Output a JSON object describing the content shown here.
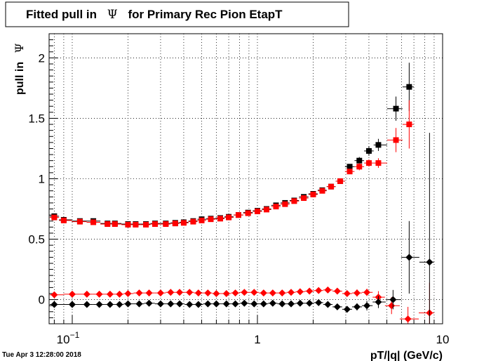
{
  "footer": {
    "timestamp": "Tue Apr  3 12:28:00 2018"
  },
  "chart_data": {
    "type": "scatter",
    "title": "Fitted pull in  Ψ  for Primary Rec Pion EtapT",
    "title_parts": {
      "prefix": "Fitted pull in",
      "symbol": "Ψ",
      "suffix": "for Primary Rec Pion EtapT"
    },
    "xlabel": "pT/|q| (GeV/c)",
    "ylabel": "pull in  Ψ",
    "ylabel_parts": {
      "prefix": "pull in",
      "symbol": "Ψ"
    },
    "x_scale": "log",
    "xlim": [
      0.075,
      10
    ],
    "ylim": [
      -0.2,
      2.2
    ],
    "grid": true,
    "legend": "none",
    "x_ticks": [
      {
        "value": 0.1,
        "label": "10",
        "sup": "−1"
      },
      {
        "value": 1,
        "label": "1",
        "sup": ""
      },
      {
        "value": 10,
        "label": "10",
        "sup": ""
      }
    ],
    "y_ticks": [
      {
        "value": 0,
        "label": "0"
      },
      {
        "value": 0.5,
        "label": "0.5"
      },
      {
        "value": 1,
        "label": "1"
      },
      {
        "value": 1.5,
        "label": "1.5"
      },
      {
        "value": 2,
        "label": "2"
      }
    ],
    "series": [
      {
        "marker": "square",
        "color": "#000000",
        "points": [
          [
            0.08,
            0.69,
            0
          ],
          [
            0.09,
            0.66,
            0
          ],
          [
            0.11,
            0.65,
            0
          ],
          [
            0.13,
            0.65,
            0
          ],
          [
            0.155,
            0.63,
            0
          ],
          [
            0.17,
            0.63,
            0
          ],
          [
            0.2,
            0.625,
            0
          ],
          [
            0.22,
            0.625,
            0
          ],
          [
            0.25,
            0.625,
            0
          ],
          [
            0.28,
            0.63,
            0
          ],
          [
            0.32,
            0.63,
            0
          ],
          [
            0.36,
            0.635,
            0
          ],
          [
            0.4,
            0.64,
            0
          ],
          [
            0.45,
            0.65,
            0
          ],
          [
            0.5,
            0.665,
            0
          ],
          [
            0.56,
            0.67,
            0
          ],
          [
            0.63,
            0.675,
            0
          ],
          [
            0.7,
            0.685,
            0
          ],
          [
            0.79,
            0.7,
            0
          ],
          [
            0.89,
            0.72,
            0
          ],
          [
            1.0,
            0.735,
            0
          ],
          [
            1.12,
            0.75,
            0
          ],
          [
            1.26,
            0.78,
            0
          ],
          [
            1.41,
            0.8,
            0
          ],
          [
            1.58,
            0.82,
            0
          ],
          [
            1.78,
            0.85,
            0
          ],
          [
            2.0,
            0.875,
            0
          ],
          [
            2.24,
            0.905,
            0
          ],
          [
            2.5,
            0.935,
            0
          ],
          [
            2.8,
            0.98,
            0
          ],
          [
            3.15,
            1.1,
            0.02
          ],
          [
            3.55,
            1.15,
            0.03
          ],
          [
            4.0,
            1.23,
            0.04
          ],
          [
            4.5,
            1.28,
            0.05
          ],
          [
            5.6,
            1.58,
            0.1
          ],
          [
            6.6,
            1.76,
            0.2
          ]
        ]
      },
      {
        "marker": "square",
        "color": "#ff0000",
        "points": [
          [
            0.08,
            0.68,
            0
          ],
          [
            0.09,
            0.655,
            0
          ],
          [
            0.11,
            0.645,
            0
          ],
          [
            0.13,
            0.64,
            0
          ],
          [
            0.155,
            0.625,
            0
          ],
          [
            0.17,
            0.625,
            0
          ],
          [
            0.2,
            0.62,
            0
          ],
          [
            0.22,
            0.62,
            0
          ],
          [
            0.25,
            0.62,
            0
          ],
          [
            0.28,
            0.625,
            0
          ],
          [
            0.32,
            0.625,
            0
          ],
          [
            0.36,
            0.63,
            0
          ],
          [
            0.4,
            0.635,
            0
          ],
          [
            0.45,
            0.645,
            0
          ],
          [
            0.5,
            0.655,
            0
          ],
          [
            0.56,
            0.665,
            0
          ],
          [
            0.63,
            0.67,
            0
          ],
          [
            0.7,
            0.68,
            0
          ],
          [
            0.79,
            0.7,
            0
          ],
          [
            0.89,
            0.715,
            0
          ],
          [
            1.0,
            0.73,
            0
          ],
          [
            1.12,
            0.745,
            0
          ],
          [
            1.26,
            0.77,
            0
          ],
          [
            1.41,
            0.79,
            0
          ],
          [
            1.58,
            0.815,
            0
          ],
          [
            1.78,
            0.84,
            0
          ],
          [
            2.0,
            0.87,
            0
          ],
          [
            2.24,
            0.9,
            0
          ],
          [
            2.5,
            0.935,
            0
          ],
          [
            2.8,
            0.98,
            0
          ],
          [
            3.15,
            1.06,
            0.02
          ],
          [
            3.55,
            1.1,
            0.03
          ],
          [
            4.0,
            1.13,
            0.03
          ],
          [
            4.5,
            1.13,
            0.04
          ],
          [
            5.6,
            1.32,
            0.1
          ],
          [
            6.6,
            1.45,
            0.2
          ]
        ]
      },
      {
        "marker": "diamond",
        "color": "#ff0000",
        "points": [
          [
            0.08,
            0.04,
            0
          ],
          [
            0.1,
            0.045,
            0
          ],
          [
            0.12,
            0.045,
            0
          ],
          [
            0.14,
            0.045,
            0
          ],
          [
            0.16,
            0.045,
            0
          ],
          [
            0.18,
            0.045,
            0
          ],
          [
            0.2,
            0.05,
            0
          ],
          [
            0.23,
            0.055,
            0
          ],
          [
            0.26,
            0.055,
            0
          ],
          [
            0.3,
            0.055,
            0
          ],
          [
            0.34,
            0.06,
            0
          ],
          [
            0.38,
            0.06,
            0
          ],
          [
            0.43,
            0.06,
            0
          ],
          [
            0.48,
            0.055,
            0
          ],
          [
            0.54,
            0.055,
            0
          ],
          [
            0.6,
            0.05,
            0
          ],
          [
            0.68,
            0.05,
            0
          ],
          [
            0.76,
            0.055,
            0
          ],
          [
            0.85,
            0.06,
            0
          ],
          [
            0.96,
            0.06,
            0
          ],
          [
            1.08,
            0.055,
            0
          ],
          [
            1.21,
            0.055,
            0
          ],
          [
            1.36,
            0.055,
            0
          ],
          [
            1.52,
            0.06,
            0
          ],
          [
            1.7,
            0.065,
            0
          ],
          [
            1.91,
            0.07,
            0
          ],
          [
            2.14,
            0.075,
            0
          ],
          [
            2.4,
            0.08,
            0
          ],
          [
            2.7,
            0.07,
            0
          ],
          [
            3.05,
            0.05,
            0.02
          ],
          [
            3.45,
            0.055,
            0.03
          ],
          [
            3.9,
            0.06,
            0.03
          ],
          [
            4.5,
            0.02,
            0.05
          ],
          [
            5.3,
            -0.05,
            0.07
          ],
          [
            6.5,
            -0.16,
            0.1
          ],
          [
            8.5,
            -0.11,
            0.25
          ]
        ]
      },
      {
        "marker": "diamond",
        "color": "#000000",
        "points": [
          [
            0.08,
            -0.04,
            0
          ],
          [
            0.1,
            -0.04,
            0
          ],
          [
            0.12,
            -0.04,
            0
          ],
          [
            0.14,
            -0.04,
            0
          ],
          [
            0.16,
            -0.04,
            0
          ],
          [
            0.18,
            -0.04,
            0
          ],
          [
            0.2,
            -0.035,
            0
          ],
          [
            0.23,
            -0.035,
            0
          ],
          [
            0.26,
            -0.03,
            0
          ],
          [
            0.3,
            -0.035,
            0
          ],
          [
            0.34,
            -0.035,
            0
          ],
          [
            0.38,
            -0.035,
            0
          ],
          [
            0.43,
            -0.04,
            0
          ],
          [
            0.48,
            -0.04,
            0
          ],
          [
            0.54,
            -0.035,
            0
          ],
          [
            0.6,
            -0.035,
            0
          ],
          [
            0.68,
            -0.035,
            0
          ],
          [
            0.76,
            -0.035,
            0
          ],
          [
            0.85,
            -0.03,
            0
          ],
          [
            0.96,
            -0.035,
            0
          ],
          [
            1.08,
            -0.035,
            0
          ],
          [
            1.21,
            -0.03,
            0
          ],
          [
            1.36,
            -0.035,
            0
          ],
          [
            1.52,
            -0.035,
            0
          ],
          [
            1.7,
            -0.03,
            0
          ],
          [
            1.91,
            -0.03,
            0
          ],
          [
            2.14,
            -0.025,
            0
          ],
          [
            2.4,
            -0.04,
            0
          ],
          [
            2.7,
            -0.06,
            0
          ],
          [
            3.05,
            -0.08,
            0.02
          ],
          [
            3.45,
            -0.06,
            0.03
          ],
          [
            3.9,
            -0.05,
            0.04
          ],
          [
            4.5,
            -0.02,
            0.05
          ],
          [
            5.4,
            0.0,
            0.08
          ],
          [
            6.6,
            0.35,
            0.3
          ],
          [
            8.5,
            0.31,
            1.07
          ]
        ]
      }
    ]
  }
}
